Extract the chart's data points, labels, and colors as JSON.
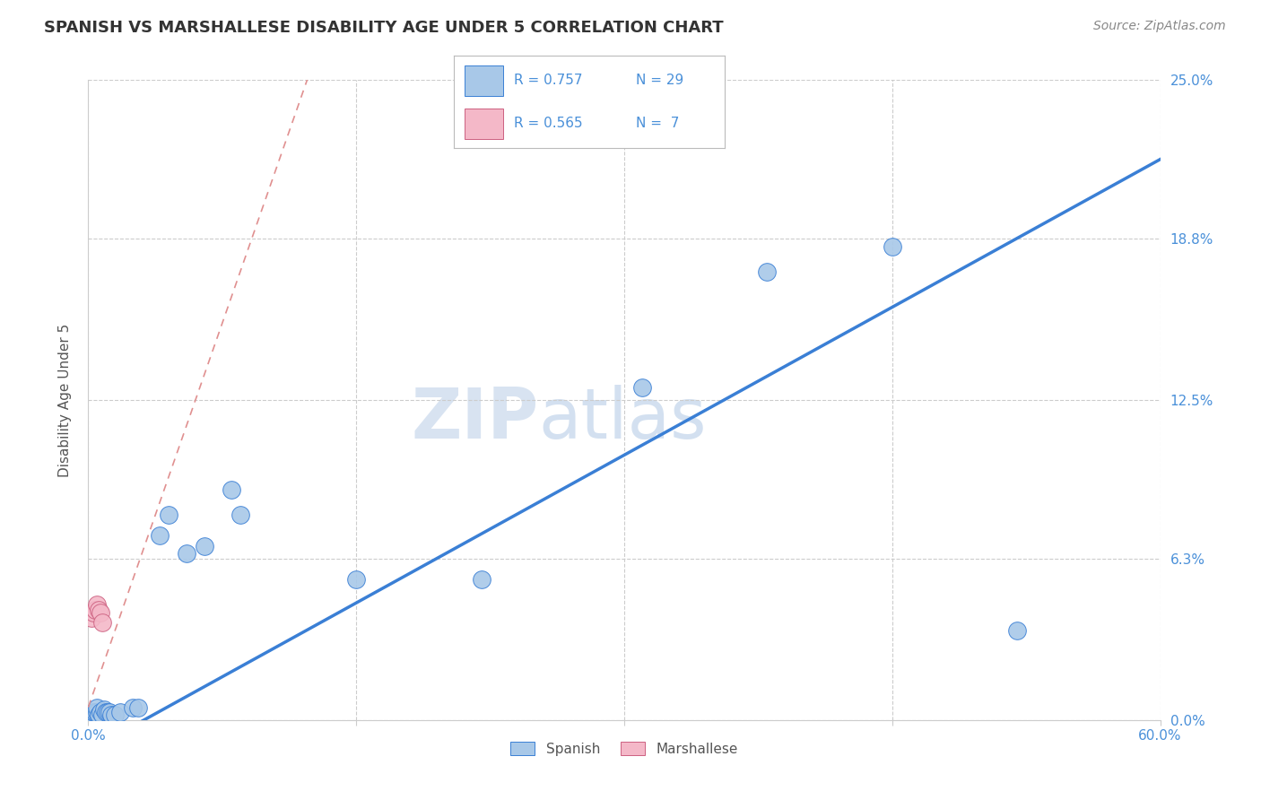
{
  "title": "SPANISH VS MARSHALLESE DISABILITY AGE UNDER 5 CORRELATION CHART",
  "source": "Source: ZipAtlas.com",
  "ylabel": "Disability Age Under 5",
  "watermark": "ZIPatlas",
  "xlim": [
    0.0,
    0.6
  ],
  "ylim": [
    0.0,
    0.25
  ],
  "ytick_labels": [
    "0.0%",
    "6.3%",
    "12.5%",
    "18.8%",
    "25.0%"
  ],
  "ytick_values": [
    0.0,
    0.063,
    0.125,
    0.188,
    0.25
  ],
  "xtick_values": [
    0.0,
    0.15,
    0.3,
    0.45,
    0.6
  ],
  "xtick_labels": [
    "0.0%",
    "",
    "",
    "",
    "60.0%"
  ],
  "spanish_r": "0.757",
  "spanish_n": "29",
  "marshallese_r": "0.565",
  "marshallese_n": "7",
  "spanish_color": "#a8c8e8",
  "marshallese_color": "#f4b8c8",
  "regression_line_color": "#3a7fd5",
  "marshallese_regression_color": "#e09090",
  "spanish_points": [
    [
      0.002,
      0.002
    ],
    [
      0.003,
      0.003
    ],
    [
      0.004,
      0.003
    ],
    [
      0.005,
      0.003
    ],
    [
      0.005,
      0.005
    ],
    [
      0.006,
      0.002
    ],
    [
      0.007,
      0.003
    ],
    [
      0.008,
      0.002
    ],
    [
      0.009,
      0.004
    ],
    [
      0.01,
      0.003
    ],
    [
      0.011,
      0.003
    ],
    [
      0.012,
      0.003
    ],
    [
      0.013,
      0.002
    ],
    [
      0.015,
      0.002
    ],
    [
      0.018,
      0.003
    ],
    [
      0.025,
      0.005
    ],
    [
      0.028,
      0.005
    ],
    [
      0.04,
      0.072
    ],
    [
      0.045,
      0.08
    ],
    [
      0.055,
      0.065
    ],
    [
      0.065,
      0.068
    ],
    [
      0.08,
      0.09
    ],
    [
      0.085,
      0.08
    ],
    [
      0.15,
      0.055
    ],
    [
      0.22,
      0.055
    ],
    [
      0.31,
      0.13
    ],
    [
      0.38,
      0.175
    ],
    [
      0.45,
      0.185
    ],
    [
      0.52,
      0.035
    ]
  ],
  "marshallese_points": [
    [
      0.002,
      0.04
    ],
    [
      0.003,
      0.042
    ],
    [
      0.004,
      0.043
    ],
    [
      0.005,
      0.045
    ],
    [
      0.006,
      0.043
    ],
    [
      0.007,
      0.042
    ],
    [
      0.008,
      0.038
    ]
  ],
  "background_color": "#ffffff",
  "title_fontsize": 13,
  "label_fontsize": 11,
  "tick_fontsize": 11,
  "tick_color": "#4a90d9",
  "source_fontsize": 10,
  "legend_text_color": "#4a90d9",
  "legend_border_color": "#cccccc"
}
